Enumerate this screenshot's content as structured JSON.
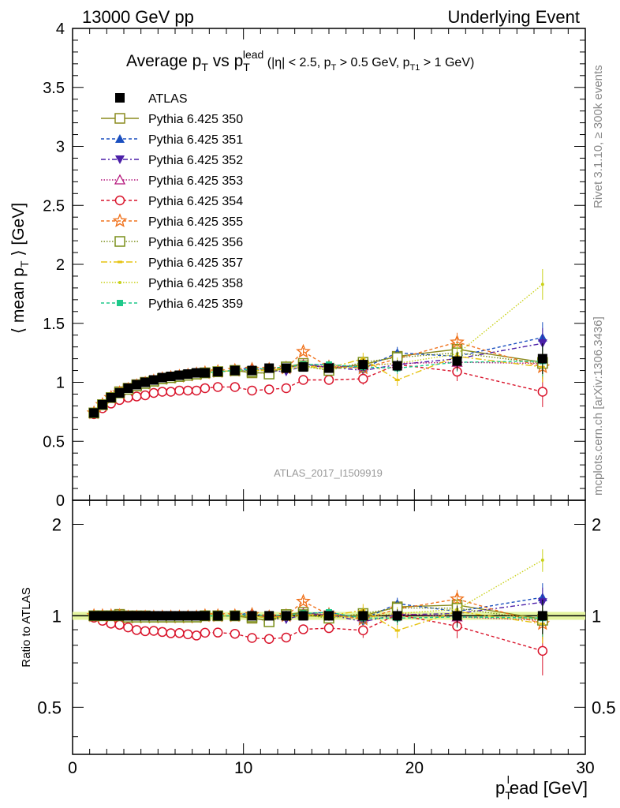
{
  "header": {
    "left": "13000 GeV pp",
    "right": "Underlying Event"
  },
  "title": {
    "main_a": "Average p",
    "main_sub1": "T",
    "main_b": " vs p",
    "main_sub2": "T",
    "main_sup2": "lead",
    "cuts_a": " (|η| < 2.5, p",
    "cuts_sub1": "T",
    "cuts_b": " > 0.5 GeV, p",
    "cuts_sub2": "T1",
    "cuts_c": " > 1 GeV)"
  },
  "side_labels": {
    "rivet": "Rivet 3.1.10, ≥ 300k events",
    "mcplots": "mcplots.cern.ch [arXiv:1306.3436]"
  },
  "watermark": "ATLAS_2017_I1509919",
  "axes": {
    "ylabel_main": "⟨ mean p",
    "ylabel_main_sub": "T",
    "ylabel_main_end": " ⟩ [GeV]",
    "ylabel_ratio": "Ratio to ATLAS",
    "xlabel": "p",
    "xlabel_sub": "T",
    "xlabel_sup": "l",
    "xlabel_end": "ead [GeV]"
  },
  "chart_data": [
    {
      "type": "line",
      "panel": "main",
      "xlim": [
        0,
        30
      ],
      "ylim": [
        0,
        4
      ],
      "x_ticks": [
        0,
        10,
        20,
        30
      ],
      "y_ticks": [
        "0",
        "0.5",
        "1",
        "1.5",
        "2",
        "2.5",
        "3",
        "3.5",
        "4"
      ],
      "x": [
        1.25,
        1.75,
        2.25,
        2.75,
        3.25,
        3.75,
        4.25,
        4.75,
        5.25,
        5.75,
        6.25,
        6.75,
        7.25,
        7.75,
        8.5,
        9.5,
        10.5,
        11.5,
        12.5,
        13.5,
        15,
        17,
        19,
        22.5,
        27.5
      ],
      "legend_position": "top-left",
      "series": [
        {
          "name": "ATLAS",
          "color": "#000000",
          "marker": "filled-square",
          "dash": "none",
          "values": [
            0.74,
            0.81,
            0.87,
            0.91,
            0.95,
            0.98,
            1.0,
            1.02,
            1.04,
            1.05,
            1.06,
            1.07,
            1.08,
            1.08,
            1.09,
            1.1,
            1.1,
            1.12,
            1.12,
            1.13,
            1.12,
            1.15,
            1.14,
            1.18,
            1.2
          ]
        },
        {
          "name": "Pythia 6.425 350",
          "color": "#8b8b1f",
          "marker": "open-square",
          "dash": "solid",
          "values": [
            0.74,
            0.81,
            0.87,
            0.92,
            0.95,
            0.98,
            1.0,
            1.01,
            1.03,
            1.04,
            1.05,
            1.06,
            1.07,
            1.08,
            1.09,
            1.1,
            1.08,
            1.08,
            1.13,
            1.16,
            1.12,
            1.15,
            1.22,
            1.28,
            1.17
          ]
        },
        {
          "name": "Pythia 6.425 351",
          "color": "#1a4fbf",
          "marker": "filled-triangle-up",
          "dash": "4,3",
          "values": [
            0.74,
            0.81,
            0.87,
            0.91,
            0.94,
            0.97,
            1.0,
            1.02,
            1.03,
            1.05,
            1.06,
            1.07,
            1.08,
            1.08,
            1.09,
            1.1,
            1.13,
            1.1,
            1.12,
            1.15,
            1.15,
            1.12,
            1.25,
            1.22,
            1.38
          ]
        },
        {
          "name": "Pythia 6.425 352",
          "color": "#4b1fa8",
          "marker": "filled-triangle-down",
          "dash": "6,3,2,3",
          "values": [
            0.74,
            0.81,
            0.86,
            0.91,
            0.94,
            0.97,
            0.99,
            1.01,
            1.03,
            1.04,
            1.05,
            1.06,
            1.07,
            1.08,
            1.09,
            1.1,
            1.1,
            1.1,
            1.09,
            1.14,
            1.13,
            1.1,
            1.15,
            1.2,
            1.33
          ]
        },
        {
          "name": "Pythia 6.425 353",
          "color": "#b4137a",
          "marker": "open-triangle-up",
          "dash": "1.5,2",
          "values": [
            0.74,
            0.81,
            0.87,
            0.91,
            0.94,
            0.97,
            0.99,
            1.01,
            1.03,
            1.04,
            1.05,
            1.06,
            1.07,
            1.08,
            1.09,
            1.1,
            1.11,
            1.11,
            1.12,
            1.15,
            1.13,
            1.14,
            1.16,
            1.17,
            1.16
          ]
        },
        {
          "name": "Pythia 6.425 354",
          "color": "#d9142b",
          "marker": "open-circle",
          "dash": "4,3",
          "values": [
            0.73,
            0.78,
            0.82,
            0.85,
            0.87,
            0.88,
            0.89,
            0.91,
            0.92,
            0.92,
            0.93,
            0.93,
            0.93,
            0.95,
            0.96,
            0.96,
            0.93,
            0.94,
            0.95,
            1.02,
            1.02,
            1.03,
            1.15,
            1.09,
            0.92
          ]
        },
        {
          "name": "Pythia 6.425 355",
          "color": "#f0731e",
          "marker": "open-star",
          "dash": "4,3",
          "values": [
            0.74,
            0.81,
            0.87,
            0.91,
            0.94,
            0.97,
            0.99,
            1.01,
            1.03,
            1.04,
            1.05,
            1.06,
            1.07,
            1.08,
            1.09,
            1.1,
            1.11,
            1.11,
            1.12,
            1.26,
            1.13,
            1.12,
            1.2,
            1.34,
            1.13
          ]
        },
        {
          "name": "Pythia 6.425 356",
          "color": "#7a8f1a",
          "marker": "open-square",
          "dash": "1.5,2",
          "values": [
            0.74,
            0.81,
            0.87,
            0.91,
            0.94,
            0.97,
            0.99,
            1.01,
            1.03,
            1.04,
            1.05,
            1.06,
            1.07,
            1.08,
            1.09,
            1.1,
            1.09,
            1.07,
            1.13,
            1.14,
            1.1,
            1.17,
            1.21,
            1.25,
            1.16
          ]
        },
        {
          "name": "Pythia 6.425 357",
          "color": "#e6c312",
          "marker": "small-dash",
          "dash": "8,3,2,3",
          "values": [
            0.74,
            0.81,
            0.87,
            0.91,
            0.94,
            0.97,
            0.99,
            1.01,
            1.03,
            1.04,
            1.05,
            1.06,
            1.07,
            1.08,
            1.09,
            1.1,
            1.1,
            1.1,
            1.12,
            1.14,
            1.12,
            1.2,
            1.02,
            1.22,
            1.13
          ]
        },
        {
          "name": "Pythia 6.425 358",
          "color": "#c9d11a",
          "marker": "dot",
          "dash": "1.5,2",
          "values": [
            0.74,
            0.81,
            0.86,
            0.9,
            0.94,
            0.97,
            0.99,
            1.01,
            1.03,
            1.04,
            1.05,
            1.06,
            1.07,
            1.08,
            1.09,
            1.1,
            1.1,
            1.1,
            1.11,
            1.13,
            1.11,
            1.14,
            1.16,
            1.24,
            1.83
          ]
        },
        {
          "name": "Pythia 6.425 359",
          "color": "#1ec98a",
          "marker": "filled-square-small",
          "dash": "4,3",
          "values": [
            0.74,
            0.81,
            0.87,
            0.91,
            0.94,
            0.97,
            0.99,
            1.01,
            1.03,
            1.04,
            1.05,
            1.06,
            1.07,
            1.08,
            1.09,
            1.1,
            1.11,
            1.12,
            1.13,
            1.15,
            1.15,
            1.13,
            1.12,
            1.17,
            1.18
          ]
        }
      ]
    },
    {
      "type": "line",
      "panel": "ratio",
      "xlim": [
        0,
        30
      ],
      "ylim_log": [
        0.35,
        2.4
      ],
      "y_ticks_left": [
        "0.5",
        "1",
        "2"
      ],
      "y_ticks_right": [
        "0.5",
        "1",
        "2"
      ],
      "x": [
        1.25,
        1.75,
        2.25,
        2.75,
        3.25,
        3.75,
        4.25,
        4.75,
        5.25,
        5.75,
        6.25,
        6.75,
        7.25,
        7.75,
        8.5,
        9.5,
        10.5,
        11.5,
        12.5,
        13.5,
        15,
        17,
        19,
        22.5,
        27.5
      ],
      "reference_band": {
        "color": "#e5f5a0",
        "values": [
          1.0
        ]
      },
      "note": "ratio values computed as series / ATLAS"
    }
  ]
}
